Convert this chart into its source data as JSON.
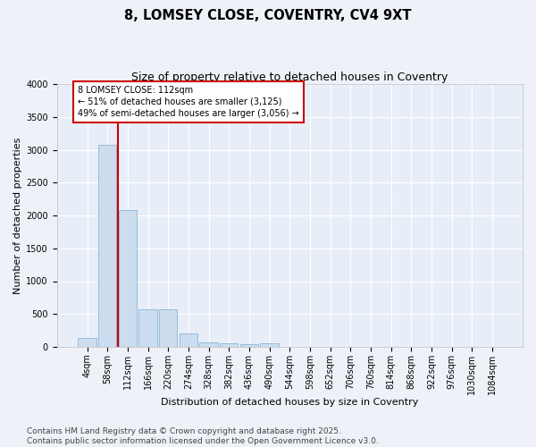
{
  "title_line1": "8, LOMSEY CLOSE, COVENTRY, CV4 9XT",
  "title_line2": "Size of property relative to detached houses in Coventry",
  "xlabel": "Distribution of detached houses by size in Coventry",
  "ylabel": "Number of detached properties",
  "bar_color": "#ccddf0",
  "bar_edge_color": "#7aabcf",
  "bar_edge_width": 0.5,
  "vline_color": "#cc0000",
  "vline_x": 1.5,
  "annotation_box_color": "#cc0000",
  "annotation_text_line1": "8 LOMSEY CLOSE: 112sqm",
  "annotation_text_line2": "← 51% of detached houses are smaller (3,125)",
  "annotation_text_line3": "49% of semi-detached houses are larger (3,056) →",
  "categories": [
    "4sqm",
    "58sqm",
    "112sqm",
    "166sqm",
    "220sqm",
    "274sqm",
    "328sqm",
    "382sqm",
    "436sqm",
    "490sqm",
    "544sqm",
    "598sqm",
    "652sqm",
    "706sqm",
    "760sqm",
    "814sqm",
    "868sqm",
    "922sqm",
    "976sqm",
    "1030sqm",
    "1084sqm"
  ],
  "bar_heights": [
    140,
    3080,
    2080,
    570,
    570,
    210,
    70,
    55,
    40,
    55,
    0,
    0,
    0,
    0,
    0,
    0,
    0,
    0,
    0,
    0,
    0
  ],
  "ylim": [
    0,
    4000
  ],
  "yticks": [
    0,
    500,
    1000,
    1500,
    2000,
    2500,
    3000,
    3500,
    4000
  ],
  "background_color": "#e8eef8",
  "grid_color": "#ffffff",
  "footer_line1": "Contains HM Land Registry data © Crown copyright and database right 2025.",
  "footer_line2": "Contains public sector information licensed under the Open Government Licence v3.0.",
  "title_fontsize": 10.5,
  "subtitle_fontsize": 9,
  "axis_label_fontsize": 8,
  "tick_fontsize": 7,
  "footer_fontsize": 6.5,
  "fig_bg_color": "#eef2f8"
}
